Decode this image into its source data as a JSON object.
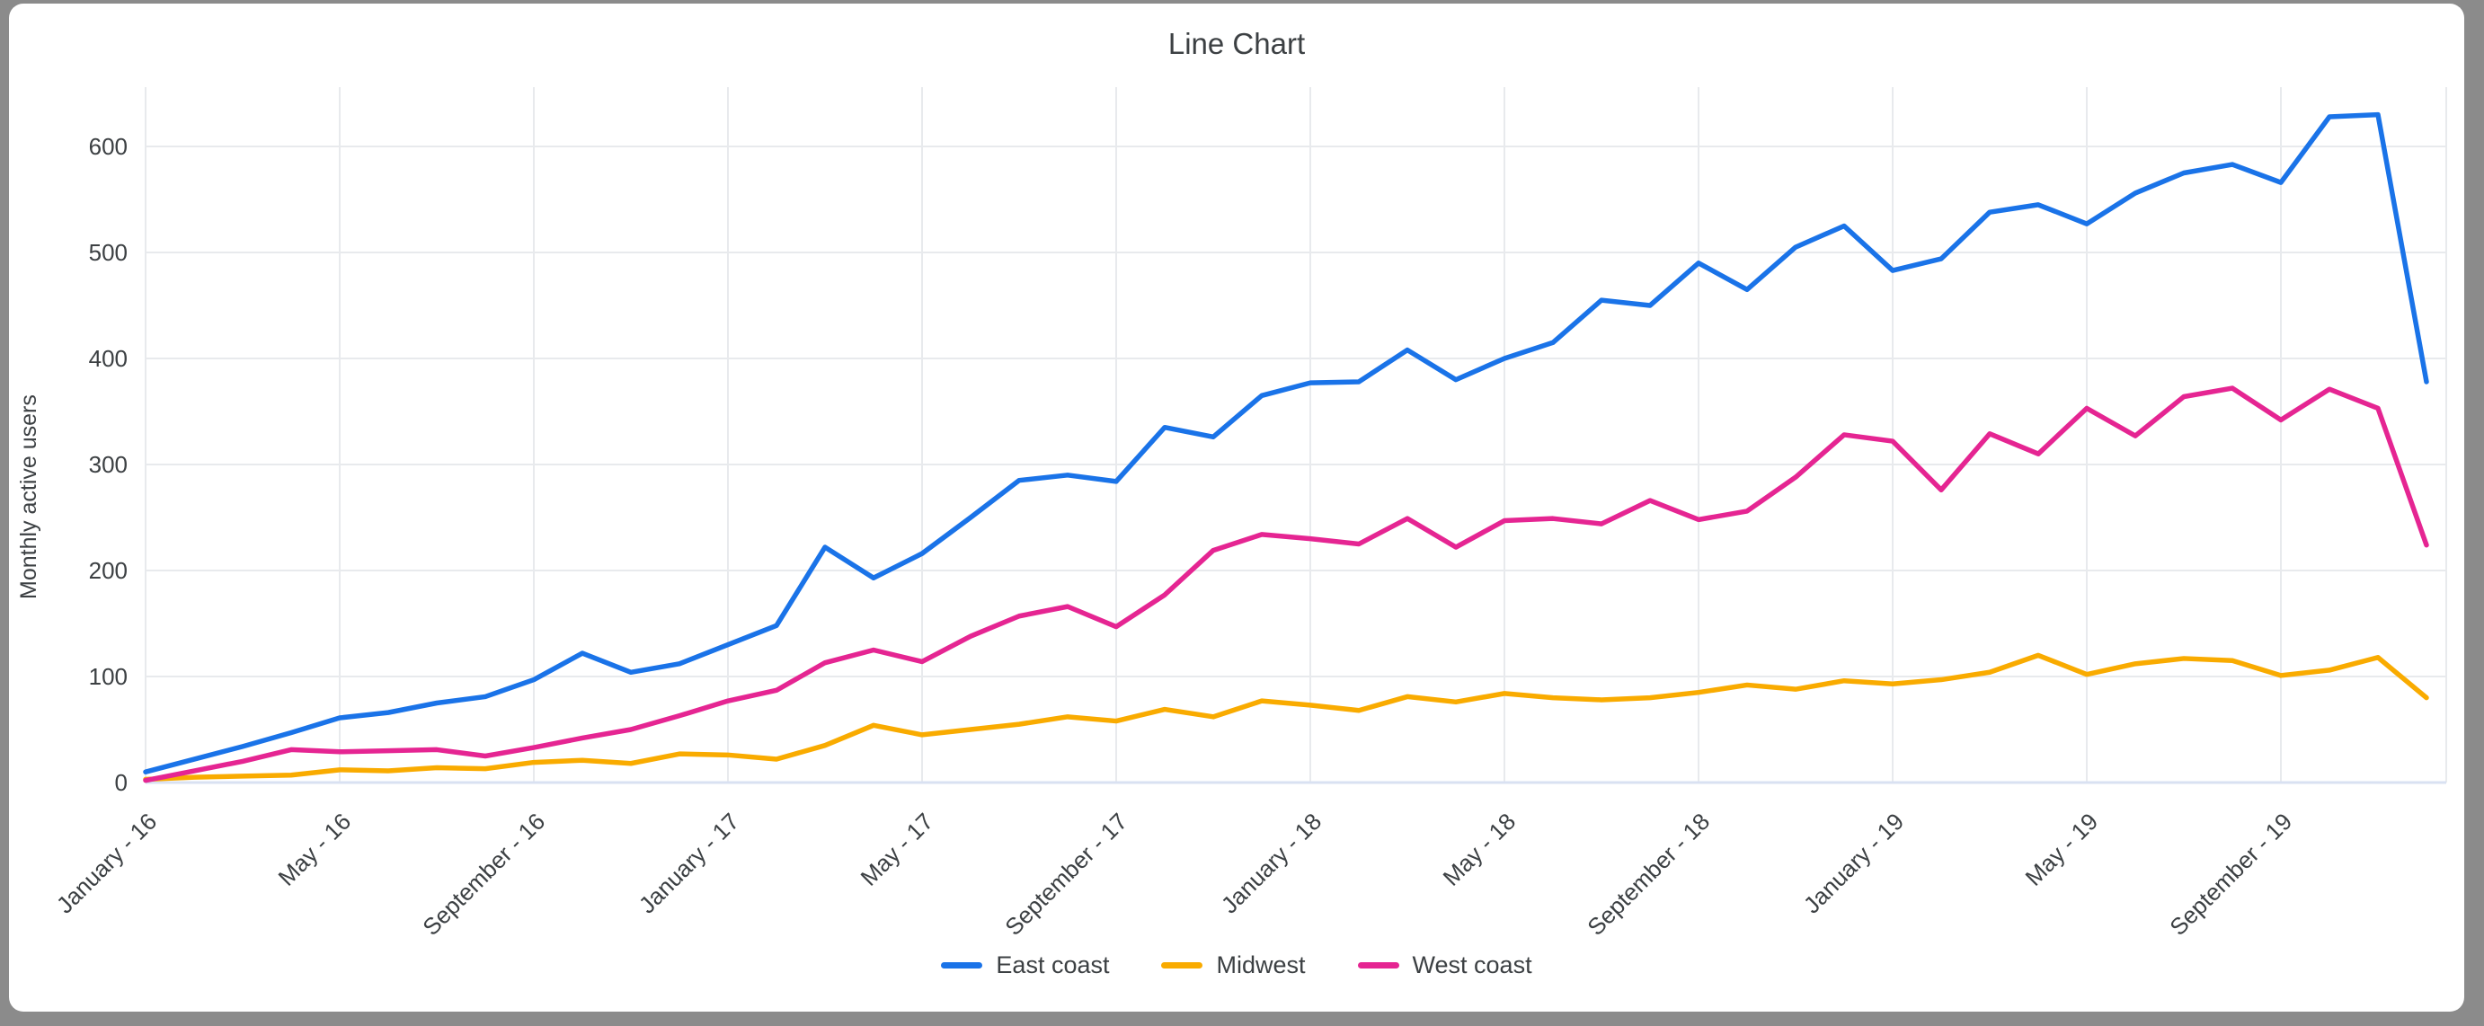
{
  "window": {
    "frame_color": "#8b8b8b",
    "canvas_color": "#ffffff"
  },
  "styles": {
    "grid_color": "#e8eaed",
    "baseline_color": "#d9e1f2",
    "axis_text_color": "#3c4043",
    "title_color": "#3c4043",
    "series_line_width": 5.5
  },
  "chart_data": {
    "type": "line",
    "title": "Line Chart",
    "xlabel": "",
    "ylabel": "Monthly active users",
    "ylim": [
      0,
      600
    ],
    "y_ticks": [
      0,
      100,
      200,
      300,
      400,
      500,
      600
    ],
    "grid": true,
    "legend_position": "bottom",
    "points_per_series": 48,
    "x_start": "January - 16",
    "x_end": "December - 19",
    "x_tick_every": 4,
    "x_tick_labels": [
      "January - 16",
      "May - 16",
      "September - 16",
      "January - 17",
      "May - 17",
      "September - 17",
      "January - 18",
      "May - 18",
      "September - 18",
      "January - 19",
      "May - 19",
      "September - 19"
    ],
    "series": [
      {
        "name": "East coast",
        "color": "#1A73E8",
        "values": [
          10,
          22,
          34,
          47,
          61,
          66,
          75,
          81,
          97,
          122,
          104,
          112,
          130,
          148,
          222,
          193,
          216,
          250,
          285,
          290,
          284,
          335,
          326,
          365,
          377,
          378,
          408,
          380,
          400,
          415,
          455,
          450,
          490,
          465,
          505,
          525,
          483,
          494,
          538,
          545,
          527,
          556,
          575,
          583,
          566,
          628,
          630,
          378
        ]
      },
      {
        "name": "Midwest",
        "color": "#F9AB00",
        "values": [
          3,
          5,
          6,
          7,
          12,
          11,
          14,
          13,
          19,
          21,
          18,
          27,
          26,
          22,
          35,
          54,
          45,
          50,
          55,
          62,
          58,
          69,
          62,
          77,
          73,
          68,
          81,
          76,
          84,
          80,
          78,
          80,
          85,
          92,
          88,
          96,
          93,
          97,
          104,
          120,
          102,
          112,
          117,
          115,
          101,
          106,
          118,
          80
        ]
      },
      {
        "name": "West coast",
        "color": "#E52592",
        "values": [
          2,
          11,
          20,
          31,
          29,
          30,
          31,
          25,
          33,
          42,
          50,
          63,
          77,
          87,
          113,
          125,
          114,
          138,
          157,
          166,
          147,
          177,
          219,
          234,
          230,
          225,
          249,
          222,
          247,
          249,
          244,
          266,
          248,
          256,
          288,
          328,
          322,
          276,
          329,
          310,
          353,
          327,
          364,
          372,
          342,
          371,
          353,
          224
        ]
      }
    ]
  }
}
